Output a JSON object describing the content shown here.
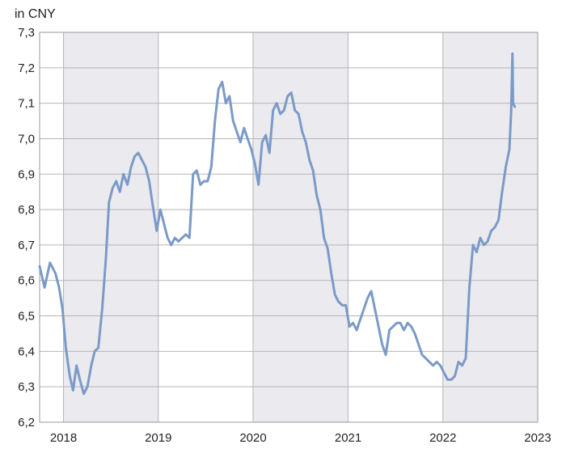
{
  "chart_data": {
    "type": "line",
    "title": "",
    "ylabel": "in CNY",
    "xlabel": "",
    "x_ticks": [
      "2018",
      "2019",
      "2020",
      "2021",
      "2022",
      "2023"
    ],
    "y_ticks": [
      "6,2",
      "6,3",
      "6,4",
      "6,5",
      "6,6",
      "6,7",
      "6,8",
      "6,9",
      "7,0",
      "7,1",
      "7,2",
      "7,3"
    ],
    "xlim": [
      "2017-10-01",
      "2023-01-01"
    ],
    "ylim": [
      6.2,
      7.3
    ],
    "grid": true,
    "alternating_year_bands": true,
    "series": [
      {
        "x": [
          "2017-10-01",
          "2017-10-20",
          "2017-11-10",
          "2017-12-01",
          "2017-12-15",
          "2017-12-28",
          "2018-01-10",
          "2018-01-25",
          "2018-02-07",
          "2018-02-20",
          "2018-03-05",
          "2018-03-20",
          "2018-04-03",
          "2018-04-18",
          "2018-05-01",
          "2018-05-15",
          "2018-05-30",
          "2018-06-13",
          "2018-06-25",
          "2018-07-09",
          "2018-07-23",
          "2018-08-06",
          "2018-08-20",
          "2018-09-04",
          "2018-09-18",
          "2018-10-02",
          "2018-10-16",
          "2018-10-30",
          "2018-11-13",
          "2018-11-27",
          "2018-12-11",
          "2018-12-26",
          "2019-01-09",
          "2019-01-23",
          "2019-02-06",
          "2019-02-20",
          "2019-03-06",
          "2019-03-20",
          "2019-04-03",
          "2019-04-17",
          "2019-05-01",
          "2019-05-15",
          "2019-05-29",
          "2019-06-12",
          "2019-06-26",
          "2019-07-10",
          "2019-07-24",
          "2019-08-07",
          "2019-08-21",
          "2019-09-04",
          "2019-09-18",
          "2019-10-02",
          "2019-10-16",
          "2019-10-30",
          "2019-11-13",
          "2019-11-27",
          "2019-12-11",
          "2019-12-25",
          "2020-01-08",
          "2020-01-22",
          "2020-02-05",
          "2020-02-19",
          "2020-03-04",
          "2020-03-18",
          "2020-04-01",
          "2020-04-15",
          "2020-04-29",
          "2020-05-13",
          "2020-05-27",
          "2020-06-10",
          "2020-06-24",
          "2020-07-08",
          "2020-07-22",
          "2020-08-05",
          "2020-08-19",
          "2020-09-02",
          "2020-09-16",
          "2020-09-30",
          "2020-10-14",
          "2020-10-28",
          "2020-11-11",
          "2020-11-25",
          "2020-12-09",
          "2020-12-23",
          "2021-01-06",
          "2021-01-20",
          "2021-02-03",
          "2021-02-17",
          "2021-03-03",
          "2021-03-17",
          "2021-03-31",
          "2021-04-14",
          "2021-04-28",
          "2021-05-12",
          "2021-05-26",
          "2021-06-09",
          "2021-06-23",
          "2021-07-07",
          "2021-07-21",
          "2021-08-04",
          "2021-08-18",
          "2021-09-01",
          "2021-09-15",
          "2021-09-29",
          "2021-10-13",
          "2021-10-27",
          "2021-11-10",
          "2021-11-24",
          "2021-12-08",
          "2021-12-22",
          "2022-01-05",
          "2022-01-19",
          "2022-02-02",
          "2022-02-16",
          "2022-03-02",
          "2022-03-16",
          "2022-03-30",
          "2022-04-13",
          "2022-04-27",
          "2022-05-11",
          "2022-05-25",
          "2022-06-08",
          "2022-06-22",
          "2022-07-06",
          "2022-07-20",
          "2022-08-03",
          "2022-08-17",
          "2022-08-31",
          "2022-09-14",
          "2022-09-21",
          "2022-09-26",
          "2022-09-28",
          "2022-10-05"
        ],
        "y": [
          6.64,
          6.58,
          6.65,
          6.62,
          6.58,
          6.52,
          6.41,
          6.33,
          6.29,
          6.36,
          6.32,
          6.28,
          6.3,
          6.36,
          6.4,
          6.41,
          6.52,
          6.66,
          6.82,
          6.86,
          6.88,
          6.85,
          6.9,
          6.87,
          6.92,
          6.95,
          6.96,
          6.94,
          6.92,
          6.88,
          6.81,
          6.74,
          6.8,
          6.76,
          6.72,
          6.7,
          6.72,
          6.71,
          6.72,
          6.73,
          6.72,
          6.9,
          6.91,
          6.87,
          6.88,
          6.88,
          6.92,
          7.05,
          7.14,
          7.16,
          7.1,
          7.12,
          7.05,
          7.02,
          6.99,
          7.03,
          7.0,
          6.97,
          6.93,
          6.87,
          6.99,
          7.01,
          6.96,
          7.08,
          7.1,
          7.07,
          7.08,
          7.12,
          7.13,
          7.08,
          7.07,
          7.02,
          6.99,
          6.94,
          6.91,
          6.84,
          6.8,
          6.72,
          6.69,
          6.62,
          6.56,
          6.54,
          6.53,
          6.53,
          6.47,
          6.48,
          6.46,
          6.49,
          6.52,
          6.55,
          6.57,
          6.52,
          6.47,
          6.42,
          6.39,
          6.46,
          6.47,
          6.48,
          6.48,
          6.46,
          6.48,
          6.47,
          6.45,
          6.42,
          6.39,
          6.38,
          6.37,
          6.36,
          6.37,
          6.36,
          6.34,
          6.32,
          6.32,
          6.33,
          6.37,
          6.36,
          6.38,
          6.58,
          6.7,
          6.68,
          6.72,
          6.7,
          6.71,
          6.74,
          6.75,
          6.77,
          6.85,
          6.92,
          6.97,
          7.08,
          7.24,
          7.1,
          7.09
        ]
      }
    ]
  }
}
